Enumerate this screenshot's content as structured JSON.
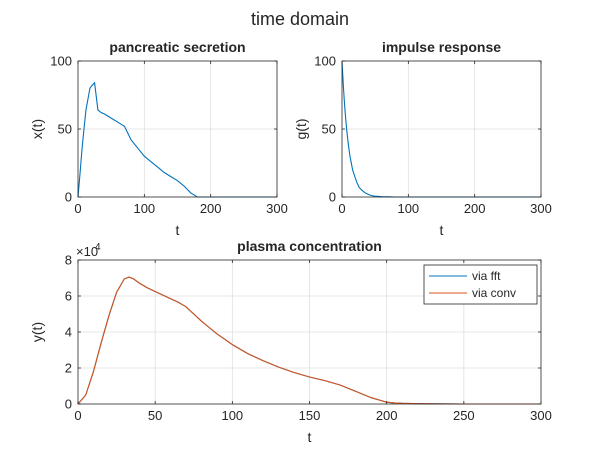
{
  "figure": {
    "title": "time domain"
  },
  "chart_data": [
    {
      "id": "secretion",
      "type": "line",
      "title": "pancreatic secretion",
      "xlabel": "t",
      "ylabel": "x(t)",
      "xlim": [
        0,
        300
      ],
      "ylim": [
        0,
        100
      ],
      "xticks": [
        0,
        100,
        200,
        300
      ],
      "yticks": [
        0,
        50,
        100
      ],
      "grid": true,
      "series": [
        {
          "color": "#0072BD",
          "x": [
            0,
            3,
            6,
            9,
            12,
            15,
            18,
            21,
            25,
            30,
            35,
            40,
            50,
            60,
            70,
            80,
            90,
            100,
            110,
            120,
            130,
            140,
            150,
            160,
            170,
            180,
            190,
            195,
            200,
            210,
            220,
            240,
            260,
            280,
            300
          ],
          "y": [
            0,
            17,
            35,
            50,
            64,
            72,
            80,
            82,
            84,
            64,
            62,
            61,
            58,
            55,
            52,
            42,
            36,
            30,
            26,
            22,
            18,
            15,
            12,
            8,
            3,
            0,
            0,
            0,
            0,
            0,
            0,
            0,
            0,
            0,
            0
          ]
        }
      ]
    },
    {
      "id": "impulse",
      "type": "line",
      "title": "impulse response",
      "xlabel": "t",
      "ylabel": "g(t)",
      "xlim": [
        0,
        300
      ],
      "ylim": [
        0,
        100
      ],
      "xticks": [
        0,
        100,
        200,
        300
      ],
      "yticks": [
        0,
        50,
        100
      ],
      "grid": true,
      "series": [
        {
          "color": "#0072BD",
          "x": [
            0,
            2,
            4,
            6,
            8,
            10,
            12,
            14,
            16,
            18,
            20,
            23,
            26,
            30,
            35,
            40,
            45,
            50,
            60,
            70,
            80,
            100,
            150,
            200,
            250,
            300
          ],
          "y": [
            100,
            82,
            67,
            55,
            45,
            37,
            30,
            25,
            20,
            17,
            14,
            10,
            7,
            5,
            3,
            1.8,
            1,
            0.6,
            0.2,
            0.1,
            0,
            0,
            0,
            0,
            0,
            0
          ]
        }
      ]
    },
    {
      "id": "plasma",
      "type": "line",
      "title": "plasma concentration",
      "xlabel": "t",
      "ylabel": "y(t)",
      "xlim": [
        0,
        300
      ],
      "ylim": [
        0,
        8
      ],
      "xticks": [
        0,
        50,
        100,
        150,
        200,
        250,
        300
      ],
      "yticks": [
        0,
        2,
        4,
        6,
        8
      ],
      "y_exponent_label": "×10",
      "y_exponent": "4",
      "grid": true,
      "legend": "top-right",
      "series": [
        {
          "name": "via fft",
          "color": "#0072BD",
          "x": [
            0,
            5,
            10,
            15,
            20,
            25,
            30,
            33,
            36,
            40,
            45,
            50,
            55,
            60,
            65,
            70,
            75,
            80,
            85,
            90,
            95,
            100,
            110,
            120,
            130,
            140,
            150,
            160,
            170,
            180,
            190,
            200,
            205,
            210,
            220,
            230,
            240,
            250,
            260,
            280,
            300
          ],
          "y": [
            0,
            0.5,
            1.8,
            3.4,
            4.9,
            6.2,
            6.95,
            7.05,
            6.95,
            6.7,
            6.45,
            6.25,
            6.05,
            5.85,
            5.65,
            5.4,
            5.0,
            4.6,
            4.25,
            3.9,
            3.6,
            3.3,
            2.8,
            2.4,
            2.05,
            1.75,
            1.5,
            1.3,
            1.05,
            0.7,
            0.35,
            0.1,
            0.06,
            0.04,
            0.02,
            0.01,
            0.005,
            0,
            0,
            0,
            0
          ]
        },
        {
          "name": "via conv",
          "color": "#D95319",
          "x": [
            0,
            5,
            10,
            15,
            20,
            25,
            30,
            33,
            36,
            40,
            45,
            50,
            55,
            60,
            65,
            70,
            75,
            80,
            85,
            90,
            95,
            100,
            110,
            120,
            130,
            140,
            150,
            160,
            170,
            180,
            190,
            200,
            205,
            210,
            220,
            230,
            240,
            250,
            260,
            280,
            300
          ],
          "y": [
            0,
            0.5,
            1.8,
            3.4,
            4.9,
            6.2,
            6.95,
            7.05,
            6.95,
            6.7,
            6.45,
            6.25,
            6.05,
            5.85,
            5.65,
            5.4,
            5.0,
            4.6,
            4.25,
            3.9,
            3.6,
            3.3,
            2.8,
            2.4,
            2.05,
            1.75,
            1.5,
            1.3,
            1.05,
            0.7,
            0.35,
            0.1,
            0.06,
            0.04,
            0.02,
            0.01,
            0.005,
            0,
            0,
            0,
            0
          ]
        }
      ]
    }
  ]
}
